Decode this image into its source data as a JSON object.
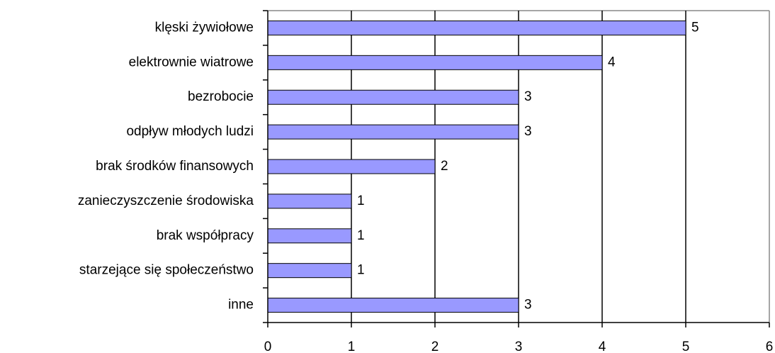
{
  "chart_data": {
    "type": "bar",
    "orientation": "horizontal",
    "categories": [
      "klęski żywiołowe",
      "elektrownie wiatrowe",
      "bezrobocie",
      "odpływ młodych ludzi",
      "brak środków finansowych",
      "zanieczyszczenie środowiska",
      "brak współpracy",
      "starzejące się społeczeństwo",
      "inne"
    ],
    "values": [
      5,
      4,
      3,
      3,
      2,
      1,
      1,
      1,
      3
    ],
    "color": "#9999ff",
    "xlim": [
      0,
      6
    ],
    "xticks": [
      0,
      1,
      2,
      3,
      4,
      5,
      6
    ],
    "grid": true
  }
}
